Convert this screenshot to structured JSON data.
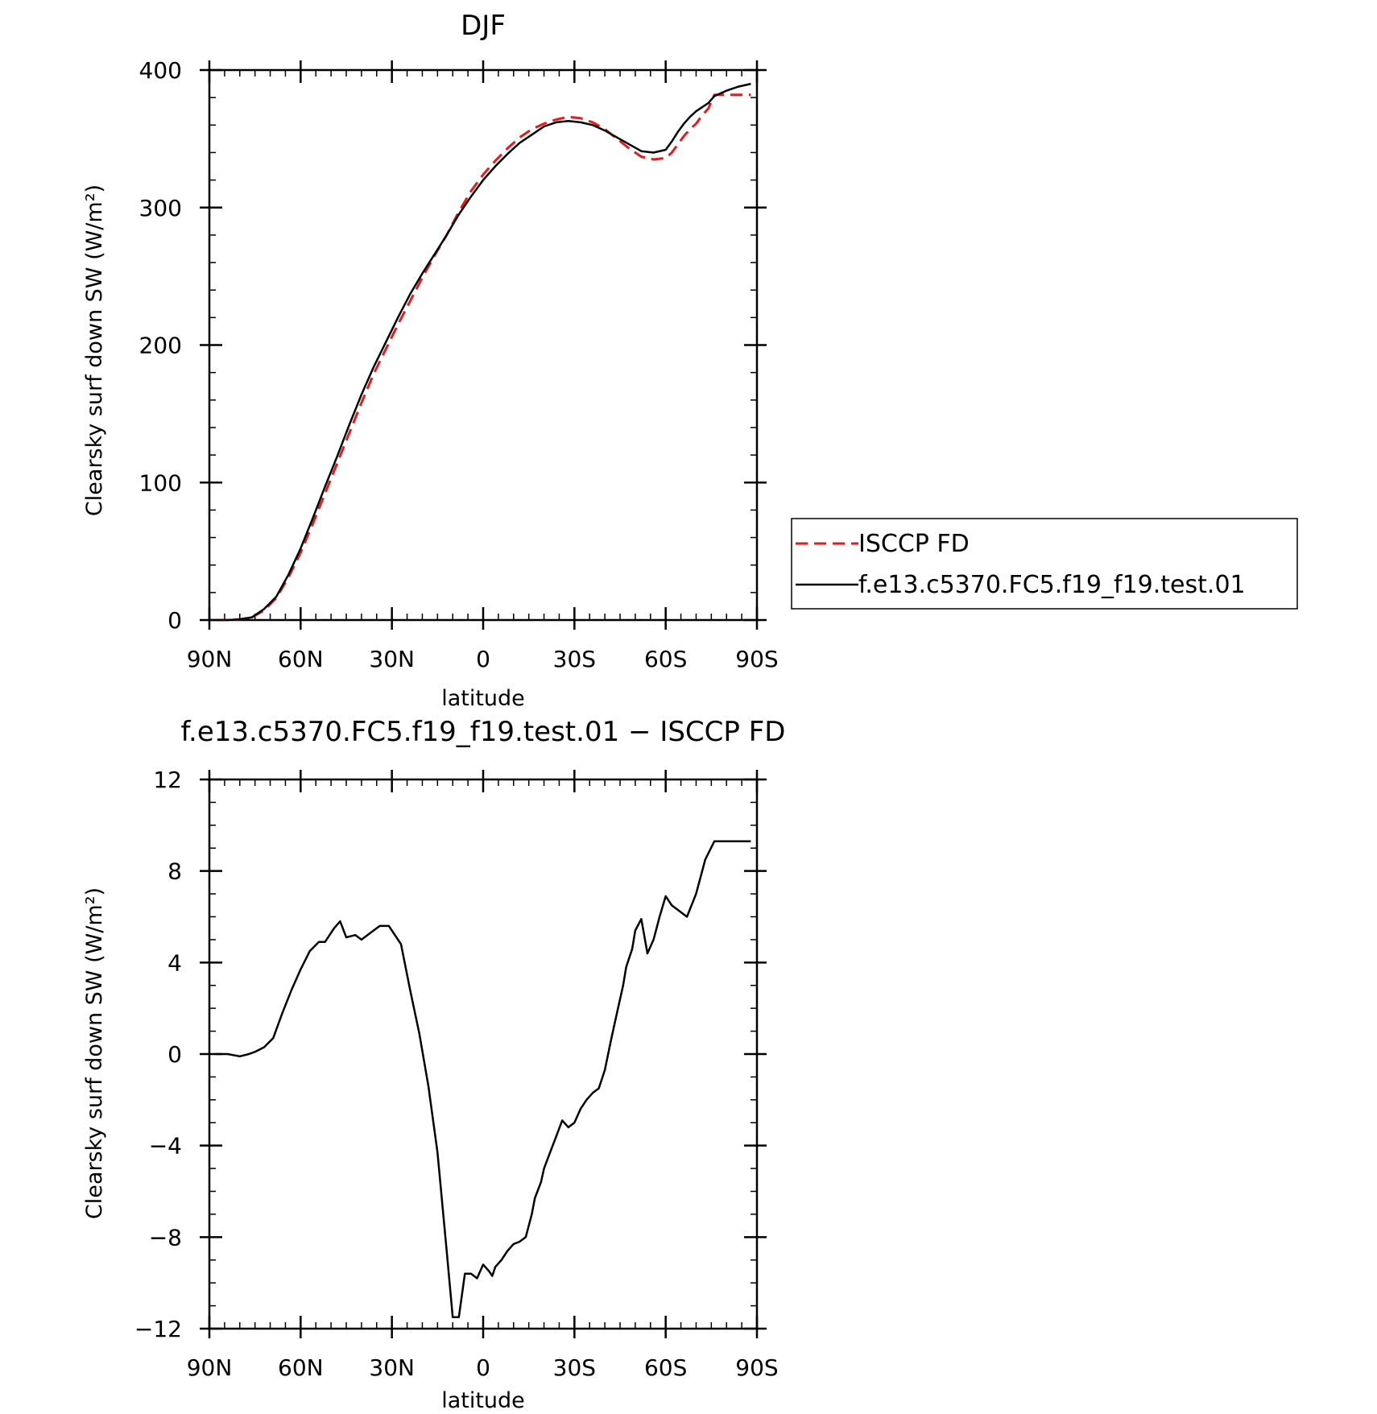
{
  "chart_data": [
    {
      "type": "line",
      "title": "DJF",
      "xlabel": "latitude",
      "ylabel": "Clearsky surf down SW (W/m²)",
      "xlim": [
        90,
        -90
      ],
      "ylim": [
        0,
        400
      ],
      "xticks": [
        {
          "v": 90,
          "label": "90N"
        },
        {
          "v": 60,
          "label": "60N"
        },
        {
          "v": 30,
          "label": "30N"
        },
        {
          "v": 0,
          "label": "0"
        },
        {
          "v": -30,
          "label": "30S"
        },
        {
          "v": -60,
          "label": "60S"
        },
        {
          "v": -90,
          "label": "90S"
        }
      ],
      "yticks": [
        {
          "v": 0,
          "label": "0"
        },
        {
          "v": 100,
          "label": "100"
        },
        {
          "v": 200,
          "label": "200"
        },
        {
          "v": 300,
          "label": "300"
        },
        {
          "v": 400,
          "label": "400"
        }
      ],
      "legend": {
        "position": "right"
      },
      "series": [
        {
          "name": "ISCCP FD",
          "color": "#e8191a",
          "dash": true,
          "x": [
            88,
            84,
            80,
            76,
            72,
            68,
            64,
            60,
            56,
            52,
            48,
            44,
            40,
            36,
            32,
            28,
            24,
            20,
            16,
            12,
            8,
            4,
            0,
            -4,
            -8,
            -12,
            -16,
            -20,
            -24,
            -28,
            -32,
            -36,
            -40,
            -44,
            -48,
            -52,
            -56,
            -60,
            -62,
            -64,
            -66,
            -68,
            -70,
            -72,
            -74,
            -76,
            -80,
            -84,
            -88
          ],
          "y": [
            0,
            0,
            0.5,
            2,
            7,
            16,
            31,
            49,
            70,
            92,
            114,
            136,
            158,
            179,
            197,
            215,
            232,
            249,
            265,
            280,
            297,
            312,
            324,
            334,
            343,
            351,
            357,
            361,
            364,
            366,
            365,
            362,
            357,
            350,
            343,
            337,
            335,
            336,
            340,
            346,
            352,
            357,
            361,
            367,
            372,
            382,
            382,
            382,
            382
          ]
        },
        {
          "name": "f.e13.c5370.FC5.f19_f19.test.01",
          "color": "#000000",
          "dash": false,
          "x": [
            88,
            84,
            80,
            76,
            72,
            68,
            64,
            60,
            56,
            52,
            48,
            44,
            40,
            36,
            32,
            28,
            24,
            20,
            16,
            12,
            8,
            4,
            0,
            -4,
            -8,
            -12,
            -16,
            -20,
            -24,
            -28,
            -32,
            -36,
            -40,
            -44,
            -48,
            -52,
            -56,
            -60,
            -62,
            -64,
            -66,
            -68,
            -70,
            -72,
            -74,
            -76,
            -80,
            -84,
            -88
          ],
          "y": [
            0,
            0,
            0.5,
            2,
            8,
            17,
            33,
            52,
            74,
            97,
            119,
            142,
            164,
            184,
            202,
            220,
            237,
            252,
            266,
            280,
            295,
            308,
            320,
            330,
            339,
            347,
            353,
            359,
            362,
            363,
            362,
            360,
            356,
            351,
            346,
            341,
            340,
            342,
            348,
            355,
            361,
            366,
            370,
            373,
            376,
            381,
            385,
            388,
            390
          ]
        }
      ]
    },
    {
      "type": "line",
      "title": "f.e13.c5370.FC5.f19_f19.test.01 − ISCCP FD",
      "xlabel": "latitude",
      "ylabel": "Clearsky surf down SW (W/m²)",
      "xlim": [
        90,
        -90
      ],
      "ylim": [
        -12,
        12
      ],
      "xticks": [
        {
          "v": 90,
          "label": "90N"
        },
        {
          "v": 60,
          "label": "60N"
        },
        {
          "v": 30,
          "label": "30N"
        },
        {
          "v": 0,
          "label": "0"
        },
        {
          "v": -30,
          "label": "30S"
        },
        {
          "v": -60,
          "label": "60S"
        },
        {
          "v": -90,
          "label": "90S"
        }
      ],
      "yticks": [
        {
          "v": -12,
          "label": "−12"
        },
        {
          "v": -8,
          "label": "−8"
        },
        {
          "v": -4,
          "label": "−4"
        },
        {
          "v": 0,
          "label": "0"
        },
        {
          "v": 4,
          "label": "4"
        },
        {
          "v": 8,
          "label": "8"
        },
        {
          "v": 12,
          "label": "12"
        }
      ],
      "series": [
        {
          "color": "#000000",
          "dash": false,
          "x": [
            88,
            84,
            80,
            77,
            75,
            72,
            69,
            66,
            63,
            60,
            57,
            54,
            52,
            49,
            47,
            45,
            42,
            40,
            37,
            34,
            31,
            29,
            27,
            24,
            21,
            18,
            15,
            12,
            10,
            8,
            6,
            4,
            3,
            2,
            0,
            -2,
            -3,
            -4,
            -6,
            -8,
            -10,
            -12,
            -14,
            -16,
            -17,
            -19,
            -20,
            -22,
            -24,
            -26,
            -28,
            -30,
            -32,
            -34,
            -36,
            -38,
            -40,
            -42,
            -44,
            -46,
            -47,
            -49,
            -50,
            -52,
            -54,
            -56,
            -58,
            -60,
            -62,
            -64,
            -67,
            -70,
            -73,
            -76,
            -80,
            -82,
            -84,
            -86,
            -88
          ],
          "y": [
            0,
            0,
            -0.1,
            0,
            0.1,
            0.3,
            0.7,
            1.8,
            2.8,
            3.7,
            4.5,
            4.9,
            4.9,
            5.5,
            5.8,
            5.1,
            5.2,
            5.0,
            5.3,
            5.6,
            5.6,
            5.2,
            4.8,
            2.8,
            0.9,
            -1.4,
            -4.3,
            -8.6,
            -11.5,
            -11.5,
            -9.6,
            -9.6,
            -9.7,
            -9.8,
            -9.2,
            -9.5,
            -9.7,
            -9.3,
            -9.0,
            -8.6,
            -8.3,
            -8.2,
            -8.0,
            -7.0,
            -6.3,
            -5.6,
            -5.0,
            -4.3,
            -3.6,
            -2.9,
            -3.2,
            -3.0,
            -2.4,
            -2.0,
            -1.7,
            -1.5,
            -0.7,
            0.6,
            1.8,
            3.0,
            3.8,
            4.6,
            5.4,
            5.9,
            4.4,
            5.0,
            6.0,
            6.9,
            6.5,
            6.3,
            6.0,
            7.0,
            8.5,
            9.3,
            9.3,
            9.3,
            9.3,
            9.3,
            9.3
          ]
        }
      ]
    }
  ]
}
